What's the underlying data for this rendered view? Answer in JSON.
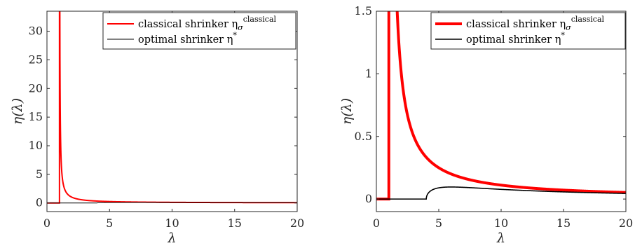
{
  "chart_data": [
    {
      "type": "line",
      "title": "",
      "xlabel": "λ",
      "ylabel": "η(λ)",
      "xlim": [
        0,
        20
      ],
      "ylim": [
        -1.5,
        33.5
      ],
      "xticks": [
        0,
        5,
        10,
        15,
        20
      ],
      "yticks": [
        0,
        5,
        10,
        15,
        20,
        25,
        30
      ],
      "grid": false,
      "legend_position": "top-right",
      "legend": [
        {
          "text": "classical shrinker η",
          "sub": "σ",
          "sup": "classical",
          "color": "#ff0000",
          "width": 2
        },
        {
          "text": "optimal shrinker η",
          "sub": "",
          "sup": "*",
          "color": "#000000",
          "width": 1
        }
      ],
      "series": [
        {
          "name": "classical shrinker η_σ^classical",
          "color": "#ff0000",
          "kind": "classical",
          "x_range": [
            0,
            20
          ]
        },
        {
          "name": "optimal shrinker η*",
          "color": "#000000",
          "kind": "optimal",
          "x_range": [
            0,
            20
          ]
        }
      ]
    },
    {
      "type": "line",
      "title": "",
      "xlabel": "λ",
      "ylabel": "η(λ)",
      "xlim": [
        0,
        20
      ],
      "ylim": [
        -0.1,
        1.5
      ],
      "xticks": [
        0,
        5,
        10,
        15,
        20
      ],
      "yticks": [
        0,
        0.5,
        1,
        1.5
      ],
      "grid": false,
      "legend_position": "top-right",
      "legend": [
        {
          "text": "classical shrinker η",
          "sub": "σ",
          "sup": "classical",
          "color": "#ff0000",
          "width": 4
        },
        {
          "text": "optimal shrinker η",
          "sub": "",
          "sup": "*",
          "color": "#000000",
          "width": 1.6
        }
      ],
      "series": [
        {
          "name": "classical shrinker η_σ^classical",
          "color": "#ff0000",
          "kind": "classical",
          "x_range": [
            0,
            20
          ]
        },
        {
          "name": "optimal shrinker η*",
          "color": "#000000",
          "kind": "optimal",
          "x_range": [
            0,
            20
          ]
        }
      ]
    }
  ]
}
